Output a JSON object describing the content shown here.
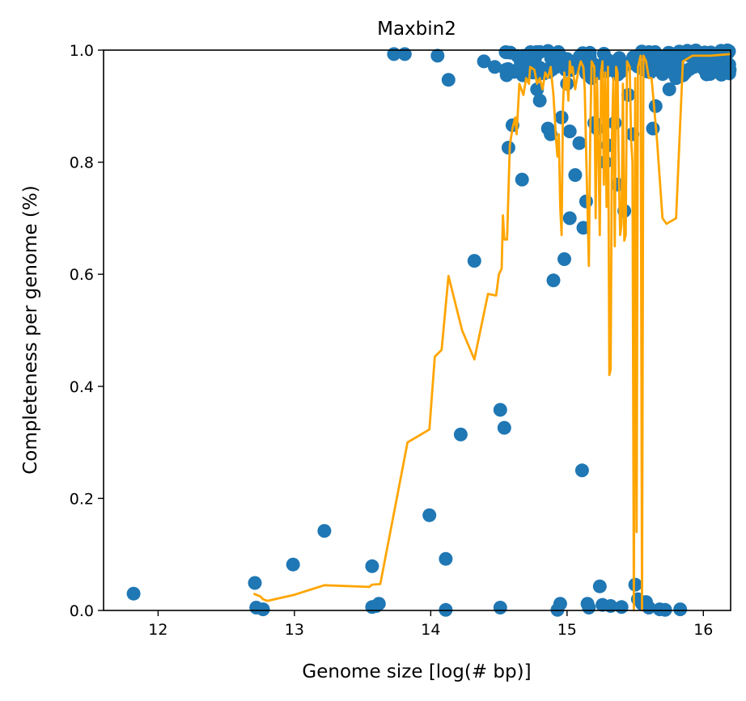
{
  "chart_data": {
    "type": "scatter",
    "title": "Maxbin2",
    "xlabel": "Genome size [log(# bp)]",
    "ylabel": "Completeness per genome (%)",
    "xlim": [
      11.6,
      16.2
    ],
    "ylim": [
      0.0,
      1.0
    ],
    "x_ticks": [
      "12",
      "13",
      "14",
      "15",
      "16"
    ],
    "x_tick_values": [
      12,
      13,
      14,
      15,
      16
    ],
    "y_ticks": [
      "0.0",
      "0.2",
      "0.4",
      "0.6",
      "0.8",
      "1.0"
    ],
    "y_tick_values": [
      0.0,
      0.2,
      0.4,
      0.6,
      0.8,
      1.0
    ],
    "grid": false,
    "colors": {
      "scatter": "#1f77b4",
      "line": "#ffa500"
    },
    "series": [
      {
        "kind": "scatter",
        "points": [
          [
            11.82,
            0.03
          ],
          [
            12.71,
            0.049
          ],
          [
            12.72,
            0.005
          ],
          [
            12.77,
            0.002
          ],
          [
            12.99,
            0.082
          ],
          [
            13.22,
            0.142
          ],
          [
            13.57,
            0.079
          ],
          [
            13.57,
            0.006
          ],
          [
            13.6,
            0.008
          ],
          [
            13.62,
            0.012
          ],
          [
            13.73,
            0.993
          ],
          [
            13.81,
            0.993
          ],
          [
            13.99,
            0.17
          ],
          [
            14.05,
            0.99
          ],
          [
            14.11,
            0.092
          ],
          [
            14.11,
            0.001
          ],
          [
            14.13,
            0.947
          ],
          [
            14.22,
            0.314
          ],
          [
            14.32,
            0.624
          ],
          [
            14.39,
            0.98
          ],
          [
            14.47,
            0.97
          ],
          [
            14.51,
            0.358
          ],
          [
            14.51,
            0.005
          ],
          [
            14.54,
            0.326
          ],
          [
            14.55,
            0.965
          ],
          [
            14.57,
            0.826
          ],
          [
            14.6,
            0.866
          ],
          [
            14.66,
            0.98
          ],
          [
            14.67,
            0.769
          ],
          [
            14.72,
            0.98
          ],
          [
            14.75,
            0.96
          ],
          [
            14.78,
            0.93
          ],
          [
            14.8,
            0.91
          ],
          [
            14.83,
            0.96
          ],
          [
            14.86,
            0.86
          ],
          [
            14.88,
            0.85
          ],
          [
            14.9,
            0.589
          ],
          [
            14.92,
            0.97
          ],
          [
            14.93,
            0.001
          ],
          [
            14.95,
            0.012
          ],
          [
            14.96,
            0.88
          ],
          [
            14.98,
            0.627
          ],
          [
            15.0,
            0.94
          ],
          [
            15.02,
            0.7
          ],
          [
            15.02,
            0.855
          ],
          [
            15.06,
            0.777
          ],
          [
            15.09,
            0.834
          ],
          [
            15.11,
            0.25
          ],
          [
            15.12,
            0.683
          ],
          [
            15.14,
            0.73
          ],
          [
            15.15,
            0.012
          ],
          [
            15.16,
            0.005
          ],
          [
            15.18,
            0.95
          ],
          [
            15.2,
            0.87
          ],
          [
            15.22,
            0.86
          ],
          [
            15.24,
            0.043
          ],
          [
            15.26,
            0.01
          ],
          [
            15.28,
            0.8
          ],
          [
            15.3,
            0.83
          ],
          [
            15.32,
            0.008
          ],
          [
            15.35,
            0.87
          ],
          [
            15.37,
            0.76
          ],
          [
            15.4,
            0.006
          ],
          [
            15.42,
            0.713
          ],
          [
            15.45,
            0.92
          ],
          [
            15.48,
            0.85
          ],
          [
            15.5,
            0.046
          ],
          [
            15.52,
            0.02
          ],
          [
            15.55,
            0.012
          ],
          [
            15.58,
            0.015
          ],
          [
            15.6,
            0.005
          ],
          [
            15.63,
            0.86
          ],
          [
            15.65,
            0.9
          ],
          [
            15.68,
            0.002
          ],
          [
            15.72,
            0.001
          ],
          [
            15.75,
            0.93
          ],
          [
            15.8,
            0.95
          ],
          [
            15.83,
            0.002
          ],
          [
            15.85,
            0.955
          ],
          [
            15.9,
            0.99
          ],
          [
            15.95,
            0.99
          ],
          [
            16.0,
            0.995
          ],
          [
            16.05,
            0.985
          ],
          [
            16.1,
            0.99
          ],
          [
            16.15,
            0.995
          ],
          [
            16.18,
            0.995
          ]
        ],
        "dense_top_cluster": {
          "x_range": [
            14.55,
            16.2
          ],
          "y_range": [
            0.955,
            1.0
          ]
        }
      },
      {
        "kind": "line",
        "points": [
          [
            12.7,
            0.03
          ],
          [
            12.75,
            0.025
          ],
          [
            12.77,
            0.02
          ],
          [
            12.8,
            0.017
          ],
          [
            13.0,
            0.028
          ],
          [
            13.22,
            0.045
          ],
          [
            13.55,
            0.042
          ],
          [
            13.57,
            0.046
          ],
          [
            13.63,
            0.047
          ],
          [
            13.83,
            0.3
          ],
          [
            13.99,
            0.323
          ],
          [
            14.03,
            0.453
          ],
          [
            14.08,
            0.465
          ],
          [
            14.13,
            0.597
          ],
          [
            14.23,
            0.5
          ],
          [
            14.32,
            0.448
          ],
          [
            14.42,
            0.565
          ],
          [
            14.48,
            0.562
          ],
          [
            14.5,
            0.6
          ],
          [
            14.52,
            0.61
          ],
          [
            14.53,
            0.705
          ],
          [
            14.54,
            0.662
          ],
          [
            14.56,
            0.662
          ],
          [
            14.58,
            0.83
          ],
          [
            14.6,
            0.86
          ],
          [
            14.62,
            0.88
          ],
          [
            14.63,
            0.85
          ],
          [
            14.65,
            0.94
          ],
          [
            14.68,
            0.92
          ],
          [
            14.7,
            0.95
          ],
          [
            14.72,
            0.94
          ],
          [
            14.73,
            0.97
          ],
          [
            14.76,
            0.965
          ],
          [
            14.78,
            0.94
          ],
          [
            14.8,
            0.95
          ],
          [
            14.82,
            0.93
          ],
          [
            14.84,
            0.96
          ],
          [
            14.86,
            0.95
          ],
          [
            14.88,
            0.97
          ],
          [
            14.9,
            0.92
          ],
          [
            14.92,
            0.84
          ],
          [
            14.93,
            0.81
          ],
          [
            14.94,
            0.85
          ],
          [
            14.95,
            0.72
          ],
          [
            14.96,
            0.67
          ],
          [
            14.97,
            0.9
          ],
          [
            14.98,
            0.96
          ],
          [
            14.99,
            0.93
          ],
          [
            15.0,
            0.95
          ],
          [
            15.01,
            0.91
          ],
          [
            15.02,
            0.98
          ],
          [
            15.03,
            0.96
          ],
          [
            15.04,
            0.97
          ],
          [
            15.06,
            0.93
          ],
          [
            15.08,
            0.96
          ],
          [
            15.1,
            0.98
          ],
          [
            15.12,
            0.97
          ],
          [
            15.13,
            0.93
          ],
          [
            15.14,
            0.82
          ],
          [
            15.15,
            0.72
          ],
          [
            15.16,
            0.615
          ],
          [
            15.17,
            0.85
          ],
          [
            15.18,
            0.98
          ],
          [
            15.2,
            0.97
          ],
          [
            15.21,
            0.7
          ],
          [
            15.22,
            0.95
          ],
          [
            15.23,
            0.82
          ],
          [
            15.24,
            0.67
          ],
          [
            15.25,
            0.96
          ],
          [
            15.26,
            0.98
          ],
          [
            15.27,
            0.76
          ],
          [
            15.28,
            0.96
          ],
          [
            15.29,
            0.72
          ],
          [
            15.3,
            0.97
          ],
          [
            15.31,
            0.42
          ],
          [
            15.32,
            0.43
          ],
          [
            15.33,
            0.85
          ],
          [
            15.34,
            0.95
          ],
          [
            15.35,
            0.65
          ],
          [
            15.36,
            0.97
          ],
          [
            15.37,
            0.96
          ],
          [
            15.38,
            0.78
          ],
          [
            15.39,
            0.67
          ],
          [
            15.4,
            0.69
          ],
          [
            15.41,
            0.94
          ],
          [
            15.42,
            0.66
          ],
          [
            15.43,
            0.67
          ],
          [
            15.44,
            0.98
          ],
          [
            15.46,
            0.97
          ],
          [
            15.47,
            0.84
          ],
          [
            15.48,
            0.8
          ],
          [
            15.49,
            0.0
          ],
          [
            15.5,
            0.95
          ],
          [
            15.51,
            0.14
          ],
          [
            15.52,
            0.97
          ],
          [
            15.53,
            0.98
          ],
          [
            15.54,
            0.99
          ],
          [
            15.55,
            0.0
          ],
          [
            15.56,
            0.99
          ],
          [
            15.58,
            0.98
          ],
          [
            15.6,
            0.95
          ],
          [
            15.62,
            0.95
          ],
          [
            15.66,
            0.84
          ],
          [
            15.7,
            0.7
          ],
          [
            15.73,
            0.69
          ],
          [
            15.8,
            0.7
          ],
          [
            15.85,
            0.98
          ],
          [
            15.92,
            0.99
          ],
          [
            16.0,
            0.99
          ],
          [
            16.05,
            0.99
          ],
          [
            16.2,
            0.993
          ]
        ]
      }
    ]
  }
}
